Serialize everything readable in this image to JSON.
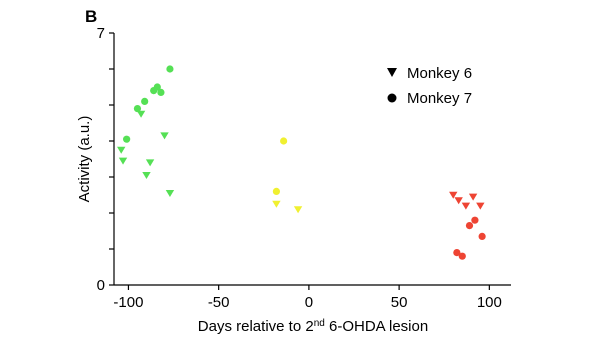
{
  "panel_label": "B",
  "chart_data": {
    "type": "scatter",
    "title": "",
    "xlabel_main": "Days relative to 2",
    "xlabel_sup": "nd",
    "xlabel_rest": " 6-OHDA lesion",
    "ylabel": "Activity (a.u.)",
    "xlim": [
      -108,
      112
    ],
    "ylim": [
      0,
      7
    ],
    "x_ticks": [
      -100,
      -50,
      0,
      50,
      100
    ],
    "x_tick_labels": [
      "-100",
      "-50",
      "0",
      "50",
      "100"
    ],
    "y_ticks": [
      0,
      7
    ],
    "y_tick_labels": [
      "0",
      "7"
    ],
    "y_minor_ticks": [
      1,
      2,
      3,
      4,
      5,
      6
    ],
    "legend_position": "top-right",
    "legend": [
      {
        "label": "Monkey 6",
        "marker": "triangle-down"
      },
      {
        "label": "Monkey 7",
        "marker": "circle"
      }
    ],
    "colors": {
      "early": "#55e055",
      "middle": "#f0f030",
      "late": "#ee4433"
    },
    "series": [
      {
        "marker": "triangle-down",
        "groups": [
          {
            "color_key": "early",
            "points": [
              [
                -104,
                3.75
              ],
              [
                -103,
                3.45
              ],
              [
                -93,
                4.75
              ],
              [
                -88,
                3.4
              ],
              [
                -90,
                3.05
              ],
              [
                -80,
                4.15
              ],
              [
                -77,
                2.55
              ]
            ]
          },
          {
            "color_key": "middle",
            "points": [
              [
                -18,
                2.25
              ],
              [
                -6,
                2.1
              ]
            ]
          },
          {
            "color_key": "late",
            "points": [
              [
                80,
                2.5
              ],
              [
                83,
                2.35
              ],
              [
                87,
                2.2
              ],
              [
                91,
                2.45
              ],
              [
                95,
                2.2
              ]
            ]
          }
        ]
      },
      {
        "marker": "circle",
        "groups": [
          {
            "color_key": "early",
            "points": [
              [
                -101,
                4.05
              ],
              [
                -95,
                4.9
              ],
              [
                -91,
                5.1
              ],
              [
                -86,
                5.4
              ],
              [
                -84,
                5.5
              ],
              [
                -82,
                5.35
              ],
              [
                -77,
                6.0
              ]
            ]
          },
          {
            "color_key": "middle",
            "points": [
              [
                -18,
                2.6
              ],
              [
                -14,
                4.0
              ]
            ]
          },
          {
            "color_key": "late",
            "points": [
              [
                82,
                0.9
              ],
              [
                85,
                0.8
              ],
              [
                89,
                1.65
              ],
              [
                92,
                1.8
              ],
              [
                96,
                1.35
              ]
            ]
          }
        ]
      }
    ]
  }
}
